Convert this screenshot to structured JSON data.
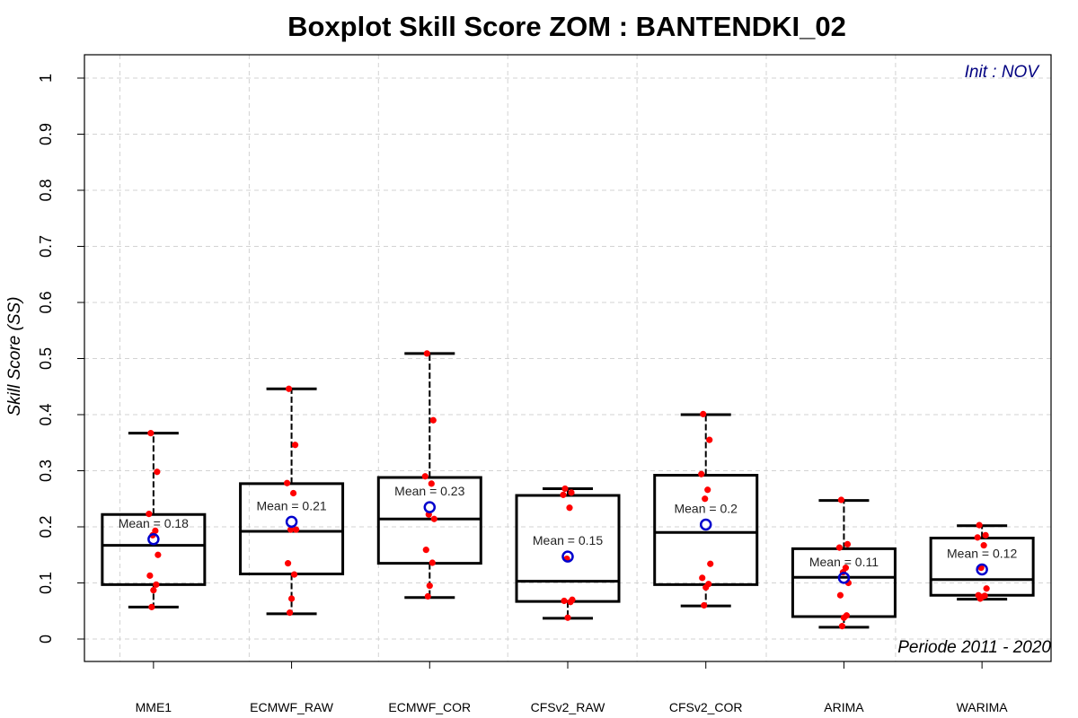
{
  "chart_data": {
    "type": "box",
    "title": "Boxplot Skill Score ZOM : BANTENDKI_02",
    "ylabel": "Skill Score (SS)",
    "ylim": [
      0,
      1
    ],
    "yticks": [
      "0",
      "0.1",
      "0.2",
      "0.3",
      "0.4",
      "0.5",
      "0.6",
      "0.7",
      "0.8",
      "0.9",
      "1"
    ],
    "grid": true,
    "annotations": {
      "init": "Init : NOV",
      "period": "Periode 2011 - 2020"
    },
    "categories": [
      "MME1",
      "ECMWF_RAW",
      "ECMWF_COR",
      "CFSv2_RAW",
      "CFSv2_COR",
      "ARIMA",
      "WARIMA"
    ],
    "boxes": [
      {
        "min": 0.057,
        "q1": 0.097,
        "median": 0.167,
        "q3": 0.222,
        "max": 0.367,
        "mean": 0.178,
        "mean_label": "Mean = 0.18",
        "points": [
          0.367,
          0.298,
          0.223,
          0.193,
          0.185,
          0.15,
          0.113,
          0.097,
          0.087,
          0.057
        ]
      },
      {
        "min": 0.045,
        "q1": 0.116,
        "median": 0.192,
        "q3": 0.277,
        "max": 0.446,
        "mean": 0.209,
        "mean_label": "Mean = 0.21",
        "points": [
          0.446,
          0.346,
          0.278,
          0.26,
          0.195,
          0.195,
          0.135,
          0.115,
          0.072,
          0.047
        ]
      },
      {
        "min": 0.074,
        "q1": 0.135,
        "median": 0.214,
        "q3": 0.288,
        "max": 0.509,
        "mean": 0.235,
        "mean_label": "Mean = 0.23",
        "points": [
          0.509,
          0.39,
          0.29,
          0.277,
          0.222,
          0.214,
          0.159,
          0.136,
          0.095,
          0.076
        ]
      },
      {
        "min": 0.037,
        "q1": 0.067,
        "median": 0.103,
        "q3": 0.256,
        "max": 0.268,
        "mean": 0.147,
        "mean_label": "Mean = 0.15",
        "points": [
          0.268,
          0.261,
          0.257,
          0.234,
          0.143,
          0.07,
          0.068,
          0.066,
          0.038
        ]
      },
      {
        "min": 0.059,
        "q1": 0.097,
        "median": 0.19,
        "q3": 0.292,
        "max": 0.4,
        "mean": 0.204,
        "mean_label": "Mean = 0.2",
        "points": [
          0.401,
          0.355,
          0.294,
          0.266,
          0.25,
          0.134,
          0.109,
          0.098,
          0.092,
          0.06
        ]
      },
      {
        "min": 0.021,
        "q1": 0.04,
        "median": 0.11,
        "q3": 0.161,
        "max": 0.247,
        "mean": 0.109,
        "mean_label": "Mean = 0.11",
        "points": [
          0.248,
          0.169,
          0.163,
          0.127,
          0.119,
          0.1,
          0.078,
          0.042,
          0.038,
          0.023
        ]
      },
      {
        "min": 0.071,
        "q1": 0.078,
        "median": 0.106,
        "q3": 0.18,
        "max": 0.202,
        "mean": 0.124,
        "mean_label": "Mean = 0.12",
        "points": [
          0.203,
          0.185,
          0.181,
          0.167,
          0.127,
          0.09,
          0.078,
          0.077,
          0.075,
          0.072
        ]
      }
    ],
    "colors": {
      "box": "#000000",
      "grid": "#d3d3d3",
      "points": "#ff0000",
      "mean_marker": "#0000cd",
      "init_text": "#000080"
    }
  }
}
